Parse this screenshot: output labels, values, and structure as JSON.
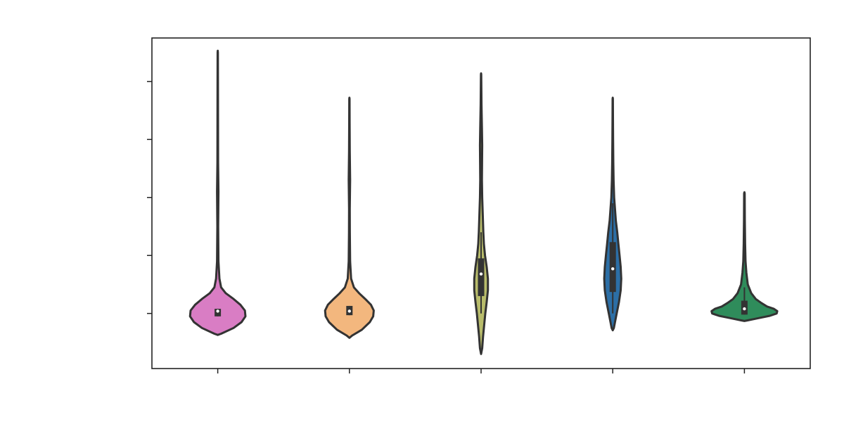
{
  "chart_data": {
    "type": "violin",
    "title": "",
    "xlabel": "",
    "ylabel": "",
    "grid": false,
    "legend": "none",
    "ylim": [
      -0.95,
      4.75
    ],
    "yticks": [
      0,
      1,
      2,
      3,
      4
    ],
    "series": [
      {
        "color": "#d97dc4",
        "min": -0.35,
        "max": 4.5,
        "q1": -0.05,
        "median": 0.04,
        "q3": 0.08,
        "whisker_lo": -0.05,
        "whisker_hi": 0.08,
        "density": [
          [
            -0.37,
            0.0
          ],
          [
            -0.35,
            0.06
          ],
          [
            -0.25,
            0.28
          ],
          [
            -0.15,
            0.42
          ],
          [
            -0.05,
            0.49
          ],
          [
            0.05,
            0.48
          ],
          [
            0.15,
            0.4
          ],
          [
            0.25,
            0.28
          ],
          [
            0.35,
            0.14
          ],
          [
            0.45,
            0.06
          ],
          [
            0.6,
            0.03
          ],
          [
            0.9,
            0.012
          ],
          [
            1.5,
            0.008
          ],
          [
            2.1,
            0.012
          ],
          [
            2.6,
            0.006
          ],
          [
            3.3,
            0.005
          ],
          [
            4.0,
            0.004
          ],
          [
            4.5,
            0.003
          ],
          [
            4.53,
            0.0
          ]
        ]
      },
      {
        "color": "#f3b77e",
        "min": -0.4,
        "max": 3.7,
        "q1": -0.03,
        "median": 0.04,
        "q3": 0.13,
        "whisker_lo": -0.03,
        "whisker_hi": 0.13,
        "density": [
          [
            -0.42,
            0.0
          ],
          [
            -0.38,
            0.05
          ],
          [
            -0.28,
            0.22
          ],
          [
            -0.15,
            0.36
          ],
          [
            -0.05,
            0.42
          ],
          [
            0.05,
            0.43
          ],
          [
            0.15,
            0.38
          ],
          [
            0.25,
            0.28
          ],
          [
            0.35,
            0.17
          ],
          [
            0.45,
            0.08
          ],
          [
            0.6,
            0.03
          ],
          [
            0.9,
            0.012
          ],
          [
            1.4,
            0.008
          ],
          [
            1.8,
            0.006
          ],
          [
            2.3,
            0.012
          ],
          [
            2.8,
            0.006
          ],
          [
            3.3,
            0.004
          ],
          [
            3.7,
            0.003
          ],
          [
            3.72,
            0.0
          ]
        ]
      },
      {
        "color": "#b8bc6b",
        "min": -0.68,
        "max": 4.12,
        "q1": 0.3,
        "median": 0.68,
        "q3": 0.95,
        "whisker_lo": 0.0,
        "whisker_hi": 1.4,
        "density": [
          [
            -0.7,
            0.0
          ],
          [
            -0.6,
            0.02
          ],
          [
            -0.4,
            0.035
          ],
          [
            -0.2,
            0.055
          ],
          [
            0.0,
            0.075
          ],
          [
            0.2,
            0.1
          ],
          [
            0.4,
            0.12
          ],
          [
            0.6,
            0.12
          ],
          [
            0.8,
            0.1
          ],
          [
            1.0,
            0.07
          ],
          [
            1.2,
            0.05
          ],
          [
            1.4,
            0.04
          ],
          [
            1.7,
            0.03
          ],
          [
            2.0,
            0.02
          ],
          [
            2.3,
            0.015
          ],
          [
            2.6,
            0.018
          ],
          [
            2.9,
            0.02
          ],
          [
            3.2,
            0.015
          ],
          [
            3.6,
            0.008
          ],
          [
            4.0,
            0.004
          ],
          [
            4.12,
            0.002
          ],
          [
            4.14,
            0.0
          ]
        ]
      },
      {
        "color": "#2c6fa6",
        "min": -0.27,
        "max": 3.7,
        "q1": 0.37,
        "median": 0.77,
        "q3": 1.23,
        "whisker_lo": 0.0,
        "whisker_hi": 1.9,
        "density": [
          [
            -0.29,
            0.0
          ],
          [
            -0.25,
            0.02
          ],
          [
            -0.15,
            0.04
          ],
          [
            0.0,
            0.07
          ],
          [
            0.2,
            0.11
          ],
          [
            0.4,
            0.14
          ],
          [
            0.6,
            0.15
          ],
          [
            0.8,
            0.14
          ],
          [
            1.0,
            0.12
          ],
          [
            1.2,
            0.1
          ],
          [
            1.4,
            0.08
          ],
          [
            1.6,
            0.055
          ],
          [
            1.8,
            0.04
          ],
          [
            2.0,
            0.025
          ],
          [
            2.3,
            0.015
          ],
          [
            2.6,
            0.01
          ],
          [
            3.0,
            0.006
          ],
          [
            3.4,
            0.004
          ],
          [
            3.7,
            0.003
          ],
          [
            3.72,
            0.0
          ]
        ]
      },
      {
        "color": "#2f8c5b",
        "min": -0.12,
        "max": 2.07,
        "q1": -0.02,
        "median": 0.08,
        "q3": 0.22,
        "whisker_lo": -0.02,
        "whisker_hi": 0.45,
        "density": [
          [
            -0.13,
            0.0
          ],
          [
            -0.12,
            0.05
          ],
          [
            -0.08,
            0.25
          ],
          [
            -0.04,
            0.45
          ],
          [
            0.0,
            0.57
          ],
          [
            0.04,
            0.58
          ],
          [
            0.08,
            0.52
          ],
          [
            0.12,
            0.4
          ],
          [
            0.18,
            0.3
          ],
          [
            0.25,
            0.2
          ],
          [
            0.35,
            0.12
          ],
          [
            0.5,
            0.06
          ],
          [
            0.7,
            0.035
          ],
          [
            0.9,
            0.02
          ],
          [
            1.2,
            0.012
          ],
          [
            1.6,
            0.008
          ],
          [
            2.07,
            0.005
          ],
          [
            2.09,
            0.0
          ]
        ]
      }
    ]
  }
}
